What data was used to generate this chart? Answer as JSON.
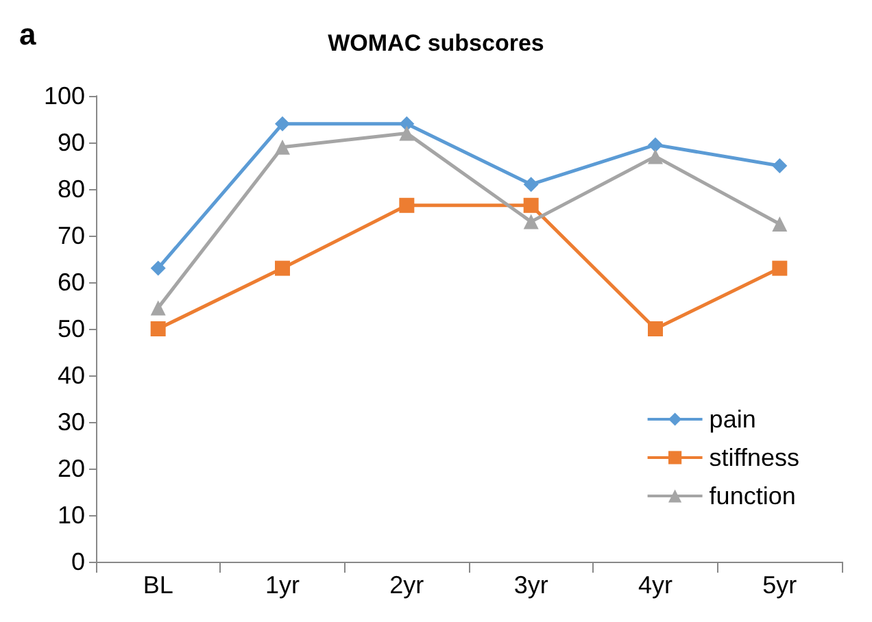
{
  "chart_data": {
    "type": "line",
    "title": "WOMAC subscores",
    "annotations": [
      "a"
    ],
    "categories": [
      "BL",
      "1yr",
      "2yr",
      "3yr",
      "4yr",
      "5yr"
    ],
    "series": [
      {
        "name": "pain",
        "color": "#5b9bd5",
        "marker": "diamond",
        "values": [
          63,
          94,
          94,
          81,
          89.5,
          85
        ]
      },
      {
        "name": "stiffness",
        "color": "#ed7d31",
        "marker": "square",
        "values": [
          50,
          63,
          76.5,
          76.5,
          50,
          63
        ]
      },
      {
        "name": "function",
        "color": "#a5a5a5",
        "marker": "triangle",
        "values": [
          54.5,
          89,
          92,
          73,
          87,
          72.5
        ]
      }
    ],
    "ylim": [
      0,
      100
    ],
    "yticks": [
      0,
      10,
      20,
      30,
      40,
      50,
      60,
      70,
      80,
      90,
      100
    ],
    "grid": false,
    "legend": "bottom right",
    "line_style": "solid"
  }
}
